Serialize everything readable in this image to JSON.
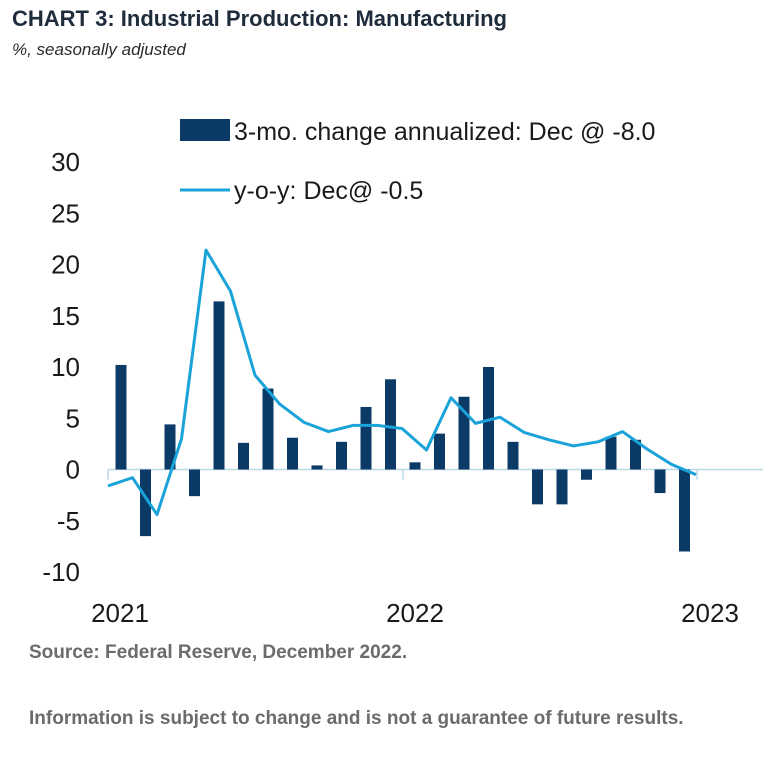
{
  "title": "CHART 3: Industrial Production: Manufacturing",
  "subtitle": "%, seasonally adjusted",
  "source": "Source: Federal Reserve, December 2022.",
  "disclaimer": "Information is subject to change and is not a guarantee of future results.",
  "colors": {
    "bar": "#0b3a66",
    "line": "#1aa3d9",
    "zero": "#b9d8e8"
  },
  "chart_data": {
    "type": "bar",
    "x_tick_labels": [
      "2021",
      "2022",
      "2023"
    ],
    "ylim": [
      -10,
      30
    ],
    "y_ticks": [
      30,
      25,
      20,
      15,
      10,
      5,
      0,
      -5,
      -10
    ],
    "y_tick_labels": [
      "30",
      "25",
      "20",
      "15",
      "10",
      "5",
      "0",
      "-5",
      "-10"
    ],
    "series": [
      {
        "name": "3-mo. change annualized: Dec @ -8.0",
        "type": "bar",
        "values": [
          10.2,
          -6.5,
          4.4,
          -2.6,
          16.4,
          2.6,
          7.9,
          3.1,
          0.4,
          2.7,
          6.1,
          8.8,
          0.7,
          3.5,
          7.1,
          10.0,
          2.7,
          -3.4,
          -3.4,
          -1.0,
          3.2,
          2.9,
          -2.3,
          -8.0
        ]
      },
      {
        "name": "y-o-y: Dec@ -0.5",
        "type": "line",
        "values": [
          -1.6,
          -0.8,
          -4.4,
          3.0,
          21.4,
          17.4,
          9.2,
          6.4,
          4.6,
          3.7,
          4.3,
          4.3,
          4.0,
          1.9,
          7.0,
          4.5,
          5.1,
          3.6,
          2.9,
          2.3,
          2.7,
          3.7,
          2.0,
          0.5,
          -0.5
        ]
      }
    ]
  }
}
